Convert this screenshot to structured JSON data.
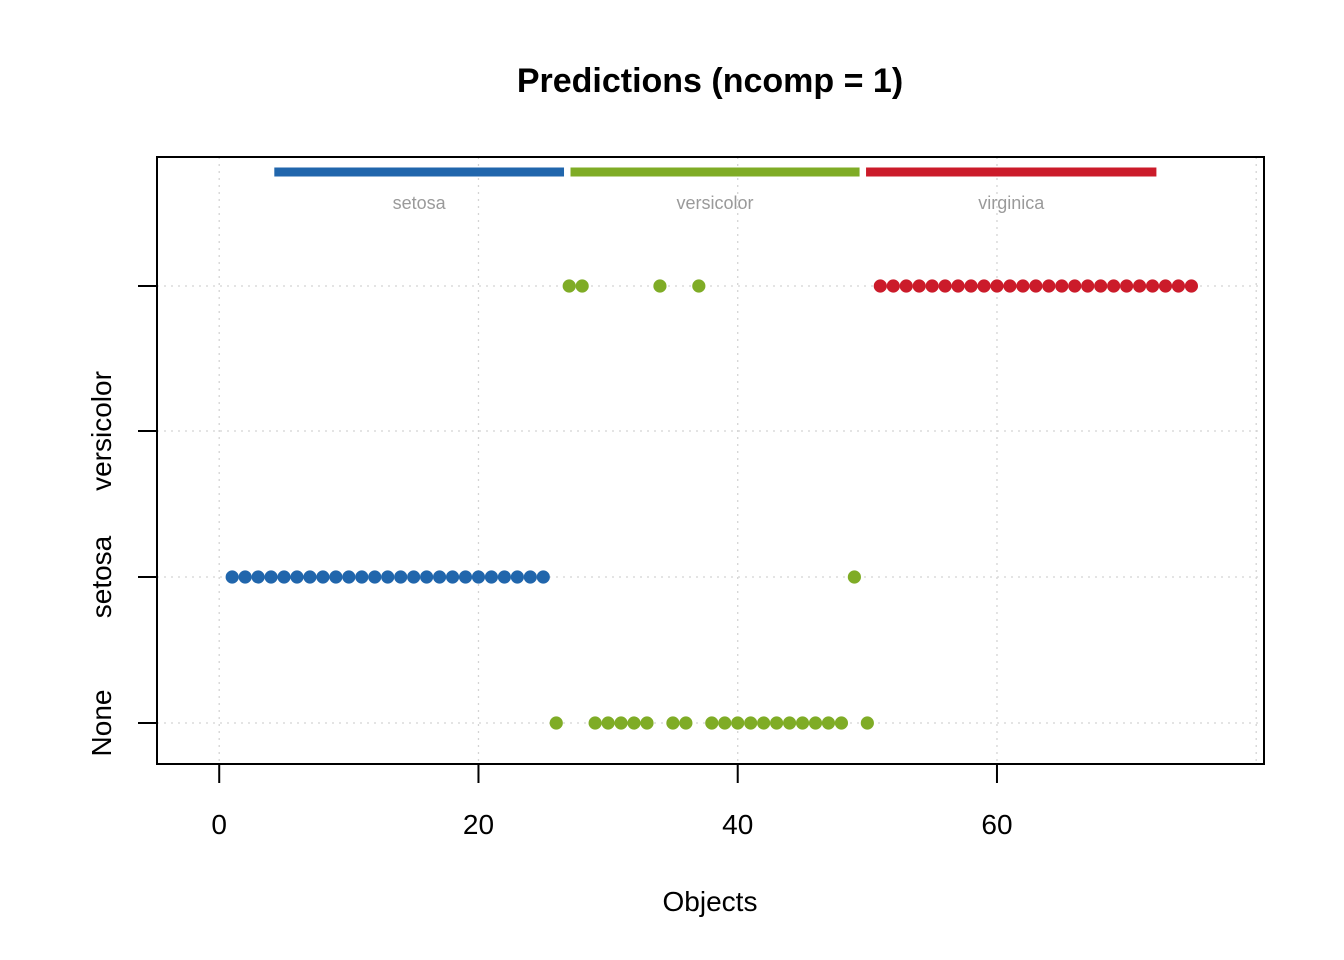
{
  "chart_data": {
    "type": "scatter",
    "title": "Predictions (ncomp = 1)",
    "xlabel": "Objects",
    "ylabel": "",
    "xlim": [
      -4.8,
      80.6
    ],
    "x_ticks": [
      0,
      20,
      40,
      60
    ],
    "y_categories": [
      "None",
      "setosa",
      "versicolor",
      ""
    ],
    "grid": true,
    "colors": {
      "setosa": "#2166ac",
      "versicolor": "#7fac26",
      "virginica": "#cb1b2a"
    },
    "groups": [
      {
        "name": "setosa",
        "from": 4.25,
        "to": 26.6
      },
      {
        "name": "versicolor",
        "from": 27.1,
        "to": 49.4
      },
      {
        "name": "virginica",
        "from": 49.9,
        "to": 72.3
      }
    ],
    "series": [
      {
        "group": "setosa",
        "points": [
          {
            "x": 1,
            "y": "setosa"
          },
          {
            "x": 2,
            "y": "setosa"
          },
          {
            "x": 3,
            "y": "setosa"
          },
          {
            "x": 4,
            "y": "setosa"
          },
          {
            "x": 5,
            "y": "setosa"
          },
          {
            "x": 6,
            "y": "setosa"
          },
          {
            "x": 7,
            "y": "setosa"
          },
          {
            "x": 8,
            "y": "setosa"
          },
          {
            "x": 9,
            "y": "setosa"
          },
          {
            "x": 10,
            "y": "setosa"
          },
          {
            "x": 11,
            "y": "setosa"
          },
          {
            "x": 12,
            "y": "setosa"
          },
          {
            "x": 13,
            "y": "setosa"
          },
          {
            "x": 14,
            "y": "setosa"
          },
          {
            "x": 15,
            "y": "setosa"
          },
          {
            "x": 16,
            "y": "setosa"
          },
          {
            "x": 17,
            "y": "setosa"
          },
          {
            "x": 18,
            "y": "setosa"
          },
          {
            "x": 19,
            "y": "setosa"
          },
          {
            "x": 20,
            "y": "setosa"
          },
          {
            "x": 21,
            "y": "setosa"
          },
          {
            "x": 22,
            "y": "setosa"
          },
          {
            "x": 23,
            "y": "setosa"
          },
          {
            "x": 24,
            "y": "setosa"
          },
          {
            "x": 25,
            "y": "setosa"
          }
        ]
      },
      {
        "group": "versicolor",
        "points": [
          {
            "x": 26,
            "y": "None"
          },
          {
            "x": 27,
            "y": ""
          },
          {
            "x": 28,
            "y": ""
          },
          {
            "x": 29,
            "y": "None"
          },
          {
            "x": 30,
            "y": "None"
          },
          {
            "x": 31,
            "y": "None"
          },
          {
            "x": 32,
            "y": "None"
          },
          {
            "x": 33,
            "y": "None"
          },
          {
            "x": 34,
            "y": ""
          },
          {
            "x": 35,
            "y": "None"
          },
          {
            "x": 36,
            "y": "None"
          },
          {
            "x": 37,
            "y": ""
          },
          {
            "x": 38,
            "y": "None"
          },
          {
            "x": 39,
            "y": "None"
          },
          {
            "x": 40,
            "y": "None"
          },
          {
            "x": 41,
            "y": "None"
          },
          {
            "x": 42,
            "y": "None"
          },
          {
            "x": 43,
            "y": "None"
          },
          {
            "x": 44,
            "y": "None"
          },
          {
            "x": 45,
            "y": "None"
          },
          {
            "x": 46,
            "y": "None"
          },
          {
            "x": 47,
            "y": "None"
          },
          {
            "x": 48,
            "y": "None"
          },
          {
            "x": 49,
            "y": "setosa"
          },
          {
            "x": 50,
            "y": "None"
          }
        ]
      },
      {
        "group": "virginica",
        "points": [
          {
            "x": 51,
            "y": ""
          },
          {
            "x": 52,
            "y": ""
          },
          {
            "x": 53,
            "y": ""
          },
          {
            "x": 54,
            "y": ""
          },
          {
            "x": 55,
            "y": ""
          },
          {
            "x": 56,
            "y": ""
          },
          {
            "x": 57,
            "y": ""
          },
          {
            "x": 58,
            "y": ""
          },
          {
            "x": 59,
            "y": ""
          },
          {
            "x": 60,
            "y": ""
          },
          {
            "x": 61,
            "y": ""
          },
          {
            "x": 62,
            "y": ""
          },
          {
            "x": 63,
            "y": ""
          },
          {
            "x": 64,
            "y": ""
          },
          {
            "x": 65,
            "y": ""
          },
          {
            "x": 66,
            "y": ""
          },
          {
            "x": 67,
            "y": ""
          },
          {
            "x": 68,
            "y": ""
          },
          {
            "x": 69,
            "y": ""
          },
          {
            "x": 70,
            "y": ""
          },
          {
            "x": 71,
            "y": ""
          },
          {
            "x": 72,
            "y": ""
          },
          {
            "x": 73,
            "y": ""
          },
          {
            "x": 74,
            "y": ""
          },
          {
            "x": 75,
            "y": ""
          }
        ]
      }
    ]
  }
}
